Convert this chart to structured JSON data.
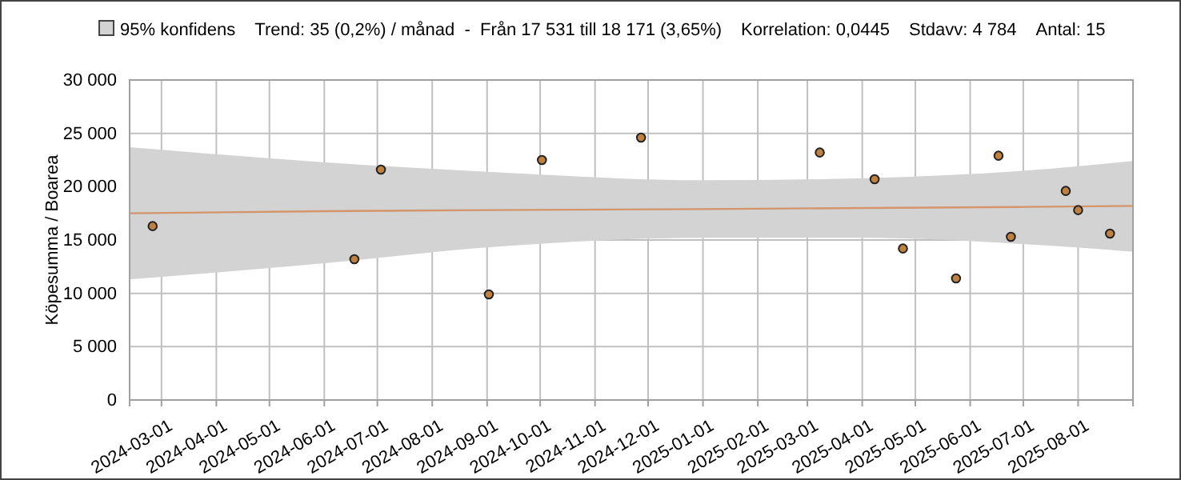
{
  "chart_data": {
    "type": "scatter",
    "ylabel": "Köpesumma / Boarea",
    "annotations": [
      "Trend: 35 (0,2%) / månad  -  Från 17 531 till 18 171 (3,65%)",
      "Korrelation: 0,0445",
      "Stdavv: 4 784",
      "Antal: 15"
    ],
    "xlim": [
      "2024-02-12",
      "2025-09-01"
    ],
    "xticks": [
      "2024-03-01",
      "2024-04-01",
      "2024-05-01",
      "2024-06-01",
      "2024-07-01",
      "2024-08-01",
      "2024-09-01",
      "2024-10-01",
      "2024-11-01",
      "2024-12-01",
      "2025-01-01",
      "2025-02-01",
      "2025-03-01",
      "2025-04-01",
      "2025-05-01",
      "2025-06-01",
      "2025-07-01",
      "2025-08-01"
    ],
    "ylim": [
      0,
      30000
    ],
    "yticks": [
      {
        "value": 0,
        "label": "0"
      },
      {
        "value": 5000,
        "label": "5 000"
      },
      {
        "value": 10000,
        "label": "10 000"
      },
      {
        "value": 15000,
        "label": "15 000"
      },
      {
        "value": 20000,
        "label": "20 000"
      },
      {
        "value": 25000,
        "label": "25 000"
      },
      {
        "value": 30000,
        "label": "30 000"
      }
    ],
    "grid": true,
    "legend_title": "95% konfidens",
    "marker": "circle",
    "series": [
      {
        "type": "line",
        "color": "#d4956a",
        "line_style": "solid",
        "marker": "none",
        "x": [
          "2024-02-12",
          "2024-05-31",
          "2024-09-01",
          "2025-01-02",
          "2025-04-03",
          "2025-07-02",
          "2025-09-01"
        ],
        "values": [
          17500,
          17700,
          17800,
          17900,
          18000,
          18100,
          18200
        ],
        "lower": [
          11300,
          12800,
          14300,
          15200,
          15200,
          14600,
          13900
        ],
        "upper": [
          23700,
          22300,
          21400,
          20600,
          20800,
          21500,
          22400
        ]
      },
      {
        "color": "#c08040",
        "x": [
          "2024-02-25",
          "2024-06-18",
          "2024-07-03",
          "2024-09-02",
          "2024-10-02",
          "2024-11-27",
          "2025-03-08",
          "2025-04-08",
          "2025-04-24",
          "2025-05-24",
          "2025-06-17",
          "2025-06-24",
          "2025-07-25",
          "2025-08-01",
          "2025-08-19"
        ],
        "values": [
          16300,
          13200,
          21600,
          9900,
          22500,
          24600,
          23200,
          20700,
          14200,
          11400,
          22900,
          15300,
          19600,
          17800,
          15600
        ]
      }
    ]
  }
}
